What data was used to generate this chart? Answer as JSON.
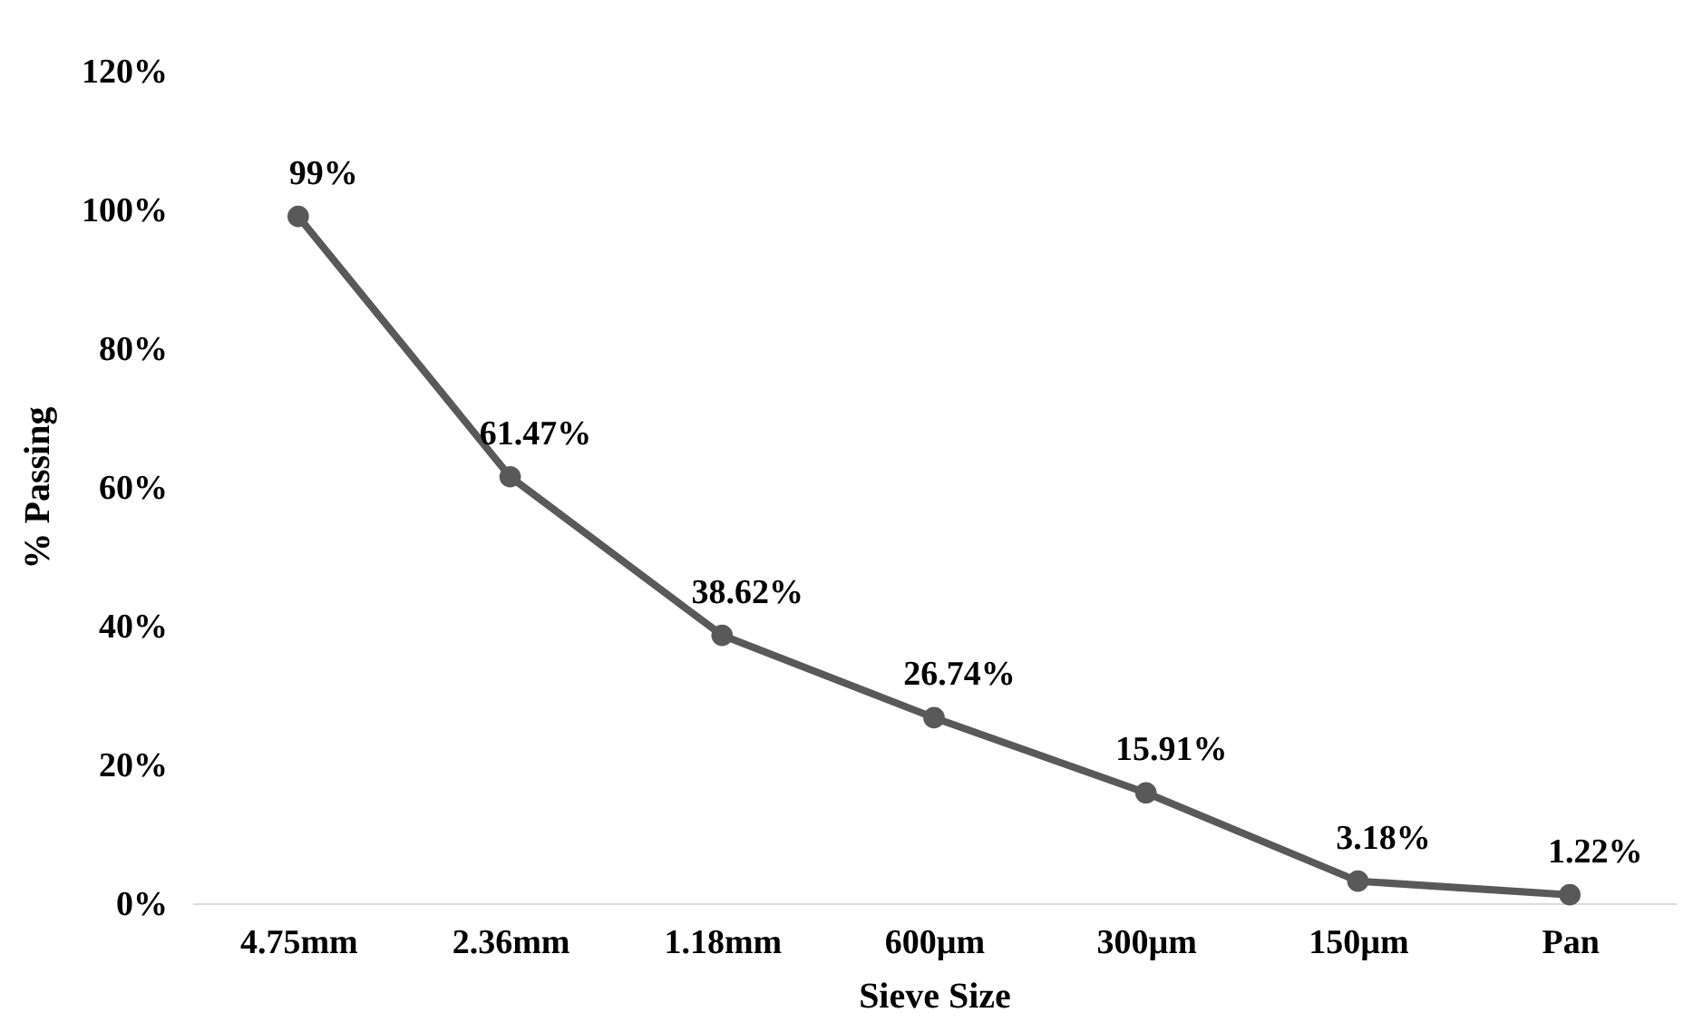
{
  "chart_data": {
    "type": "line",
    "xlabel": "Sieve Size",
    "ylabel": "% Passing",
    "categories": [
      "4.75mm",
      "2.36mm",
      "1.18mm",
      "600µm",
      "300µm",
      "150µm",
      "Pan"
    ],
    "series": [
      {
        "color": "#595959",
        "values": [
          99,
          61.47,
          38.62,
          26.74,
          15.91,
          3.18,
          1.22
        ],
        "value_labels": [
          "99%",
          "61.47%",
          "38.62%",
          "26.74%",
          "15.91%",
          "3.18%",
          "1.22%"
        ]
      }
    ],
    "ylim": [
      0,
      120
    ],
    "yticks": [
      {
        "value": 0,
        "label": "0%"
      },
      {
        "value": 20,
        "label": "20%"
      },
      {
        "value": 40,
        "label": "40%"
      },
      {
        "value": 60,
        "label": "60%"
      },
      {
        "value": 80,
        "label": "80%"
      },
      {
        "value": 100,
        "label": "100%"
      },
      {
        "value": 120,
        "label": "120%"
      }
    ],
    "grid": false,
    "marker": "circle",
    "line_style": "solid"
  }
}
